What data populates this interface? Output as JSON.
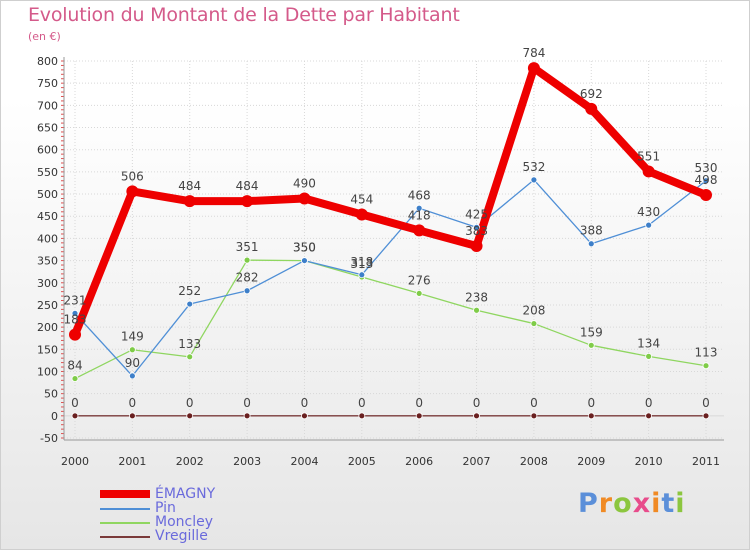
{
  "chart_data": {
    "type": "line",
    "title": "Evolution du Montant de la Dette par Habitant",
    "subtitle": "(en €)",
    "x": [
      "2000",
      "2001",
      "2002",
      "2003",
      "2004",
      "2005",
      "2006",
      "2007",
      "2008",
      "2009",
      "2010",
      "2011"
    ],
    "yticks": [
      -50,
      0,
      50,
      100,
      150,
      200,
      250,
      300,
      350,
      400,
      450,
      500,
      550,
      600,
      650,
      700,
      750,
      800
    ],
    "ylim": [
      -50,
      800
    ],
    "grid": true,
    "legend_position": "bottom-left",
    "series": [
      {
        "name": "ÉMAGNY",
        "color": "#ee0000",
        "values": [
          183,
          506,
          484,
          484,
          490,
          454,
          418,
          383,
          784,
          692,
          551,
          498
        ]
      },
      {
        "name": "Pin",
        "color": "#4f8fd6",
        "values": [
          231,
          90,
          252,
          282,
          350,
          318,
          468,
          425,
          532,
          388,
          430,
          530
        ]
      },
      {
        "name": "Moncley",
        "color": "#8fd660",
        "values": [
          84,
          149,
          133,
          351,
          350,
          313,
          276,
          238,
          208,
          159,
          134,
          113
        ]
      },
      {
        "name": "Vregille",
        "color": "#7a3a3a",
        "values": [
          0,
          0,
          0,
          0,
          0,
          0,
          0,
          0,
          0,
          0,
          0,
          0
        ]
      }
    ]
  },
  "logo": {
    "text": "Proxiti"
  }
}
